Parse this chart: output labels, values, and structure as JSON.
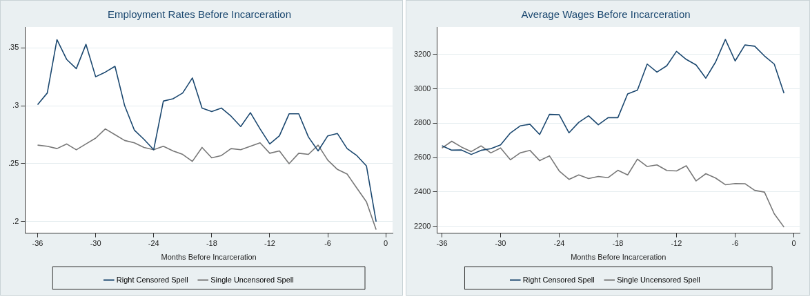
{
  "chart_data": [
    {
      "type": "line",
      "title": "Employment Rates Before Incarceration",
      "xlabel": "Months Before Incarceration",
      "x": [
        -36,
        -35,
        -34,
        -33,
        -32,
        -31,
        -30,
        -29,
        -28,
        -27,
        -26,
        -25,
        -24,
        -23,
        -22,
        -21,
        -20,
        -19,
        -18,
        -17,
        -16,
        -15,
        -14,
        -13,
        -12,
        -11,
        -10,
        -9,
        -8,
        -7,
        -6,
        -5,
        -4,
        -3,
        -2,
        -1
      ],
      "series": [
        {
          "name": "Right Censored Spell",
          "color": "#1a476f",
          "values": [
            0.301,
            0.311,
            0.357,
            0.34,
            0.332,
            0.353,
            0.325,
            0.329,
            0.334,
            0.3,
            0.279,
            0.271,
            0.262,
            0.304,
            0.306,
            0.311,
            0.324,
            0.298,
            0.295,
            0.298,
            0.291,
            0.282,
            0.294,
            0.28,
            0.267,
            0.274,
            0.293,
            0.293,
            0.273,
            0.261,
            0.274,
            0.276,
            0.263,
            0.257,
            0.248,
            0.2
          ]
        },
        {
          "name": "Single Uncensored Spell",
          "color": "#777777",
          "values": [
            0.266,
            0.265,
            0.263,
            0.267,
            0.262,
            0.267,
            0.272,
            0.28,
            0.275,
            0.27,
            0.268,
            0.264,
            0.262,
            0.265,
            0.261,
            0.258,
            0.252,
            0.264,
            0.255,
            0.257,
            0.263,
            0.262,
            0.265,
            0.268,
            0.259,
            0.261,
            0.25,
            0.259,
            0.258,
            0.266,
            0.253,
            0.245,
            0.241,
            0.229,
            0.217,
            0.193
          ]
        }
      ],
      "xlim": [
        -37.3,
        0.7
      ],
      "xticks": [
        -36,
        -30,
        -24,
        -18,
        -12,
        -6,
        0
      ],
      "ylim": [
        0.19,
        0.368
      ],
      "yticks": [
        {
          "value": 0.2,
          "label": ".2"
        },
        {
          "value": 0.25,
          "label": ".25"
        },
        {
          "value": 0.3,
          "label": ".3"
        },
        {
          "value": 0.35,
          "label": ".35"
        }
      ],
      "grid": "y",
      "legend": "bottom",
      "marker": "none",
      "line_style": "solid"
    },
    {
      "type": "line",
      "title": "Average Wages Before Incarceration",
      "xlabel": "Months Before Incarceration",
      "x": [
        -36,
        -35,
        -34,
        -33,
        -32,
        -31,
        -30,
        -29,
        -28,
        -27,
        -26,
        -25,
        -24,
        -23,
        -22,
        -21,
        -20,
        -19,
        -18,
        -17,
        -16,
        -15,
        -14,
        -13,
        -12,
        -11,
        -10,
        -9,
        -8,
        -7,
        -6,
        -5,
        -4,
        -3,
        -2,
        -1
      ],
      "series": [
        {
          "name": "Right Censored Spell",
          "color": "#1a476f",
          "values": [
            2669,
            2643,
            2644,
            2618,
            2642,
            2652,
            2674,
            2743,
            2784,
            2794,
            2734,
            2851,
            2849,
            2744,
            2805,
            2843,
            2791,
            2832,
            2832,
            2970,
            2992,
            3144,
            3097,
            3134,
            3218,
            3171,
            3139,
            3062,
            3156,
            3287,
            3162,
            3255,
            3248,
            3191,
            3144,
            2974
          ]
        },
        {
          "name": "Single Uncensored Spell",
          "color": "#777777",
          "values": [
            2655,
            2695,
            2661,
            2635,
            2668,
            2627,
            2656,
            2587,
            2627,
            2642,
            2582,
            2610,
            2522,
            2473,
            2499,
            2478,
            2490,
            2483,
            2526,
            2499,
            2591,
            2548,
            2557,
            2525,
            2522,
            2552,
            2464,
            2506,
            2481,
            2442,
            2449,
            2448,
            2409,
            2399,
            2273,
            2195
          ]
        }
      ],
      "xlim": [
        -36.5,
        0.6
      ],
      "xticks": [
        -36,
        -30,
        -24,
        -18,
        -12,
        -6,
        0
      ],
      "ylim": [
        2160,
        3360
      ],
      "yticks": [
        2200,
        2400,
        2600,
        2800,
        3000,
        3200
      ],
      "grid": "y",
      "legend": "bottom",
      "marker": "none",
      "line_style": "solid"
    }
  ]
}
